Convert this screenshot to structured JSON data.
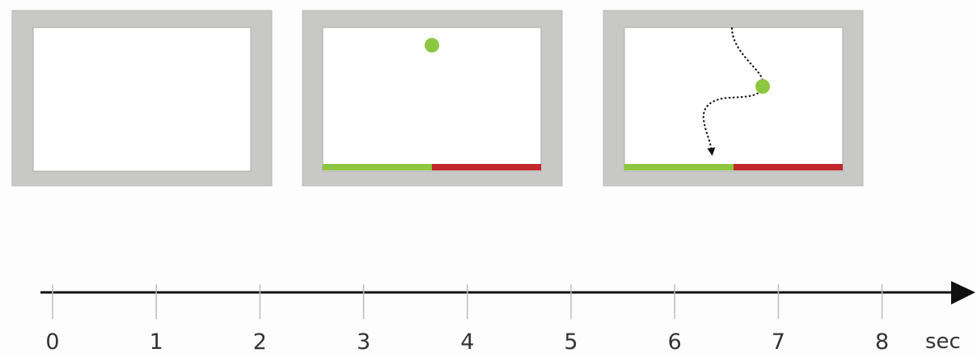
{
  "colors": {
    "frame_gray": "#c8c8c6",
    "screen_white": "#ffffff",
    "bar_green": "#8dc63f",
    "bar_red": "#c1272d",
    "ball_green": "#8dc63f",
    "axis_black": "#111111",
    "background": "#fdfdfd"
  },
  "timeline": {
    "unit": "sec",
    "ticks": [
      "0",
      "1",
      "2",
      "3",
      "4",
      "5",
      "6",
      "7",
      "8"
    ]
  },
  "frames": [
    {
      "name": "blank-screen",
      "shows_bar": false,
      "shows_ball": false,
      "shows_path": false
    },
    {
      "name": "ball-appears",
      "shows_bar": true,
      "shows_ball": true,
      "shows_path": false
    },
    {
      "name": "ball-moving",
      "shows_bar": true,
      "shows_ball": true,
      "shows_path": true
    }
  ]
}
